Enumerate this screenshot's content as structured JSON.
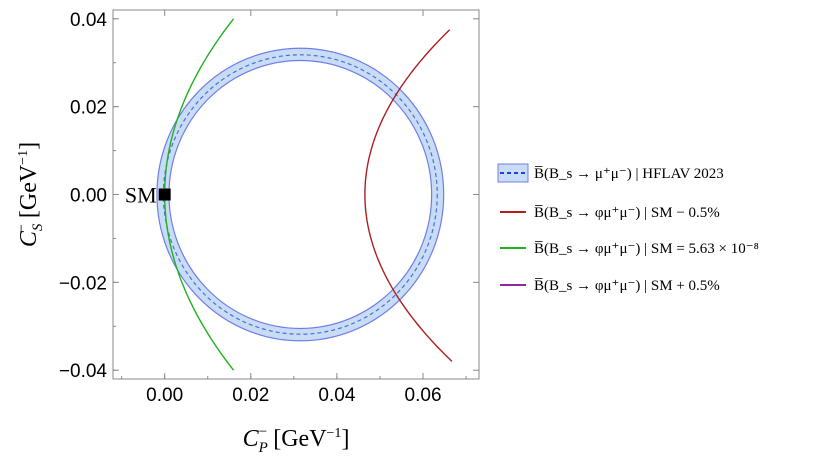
{
  "chart_data": {
    "type": "line",
    "xlabel": "C_P^- [GeV^-1]",
    "ylabel": "C_S^- [GeV^-1]",
    "xlim": [
      -0.012,
      0.073
    ],
    "ylim": [
      -0.042,
      0.042
    ],
    "xticks": [
      0.0,
      0.02,
      0.04,
      0.06
    ],
    "xtick_labels": [
      "0.00",
      "0.02",
      "0.04",
      "0.06"
    ],
    "yticks": [
      -0.04,
      -0.02,
      0.0,
      0.02,
      0.04
    ],
    "ytick_labels": [
      "−0.04",
      "−0.02",
      "0.00",
      "0.02",
      "0.04"
    ],
    "grid": false,
    "legend_position": "right",
    "sm_point": {
      "x": 0.0,
      "y": 0.0,
      "label": "SM"
    },
    "band": {
      "name": "B̅(B_s → μ⁺μ⁻) | HFLAV 2023",
      "center": [
        0.0315,
        0.0
      ],
      "inner_radius": 0.0305,
      "outer_radius": 0.0333,
      "central_radius": 0.0318,
      "fill_color": "#c9dcf5",
      "edge_color": "#6f7fe8",
      "line_color": "#4b6fd8"
    },
    "series": [
      {
        "name": "B̅(B_s → φμ⁺μ⁻) | SM − 0.5%",
        "color": "#b01f1f",
        "curve": {
          "vertex_x": 0.0465,
          "coef": 14.0,
          "y_range": [
            -0.038,
            0.0375
          ]
        }
      },
      {
        "name": "B̅(B_s → φμ⁺μ⁻) | SM = 5.63 × 10⁻⁸",
        "color": "#22b022",
        "curve": {
          "vertex_x": 0.0,
          "coef": 10.0,
          "y_range": [
            -0.04,
            0.04
          ]
        }
      },
      {
        "name": "B̅(B_s → φμ⁺μ⁻) | SM + 0.5%",
        "color": "#8b2a9a",
        "curve": null
      }
    ]
  }
}
